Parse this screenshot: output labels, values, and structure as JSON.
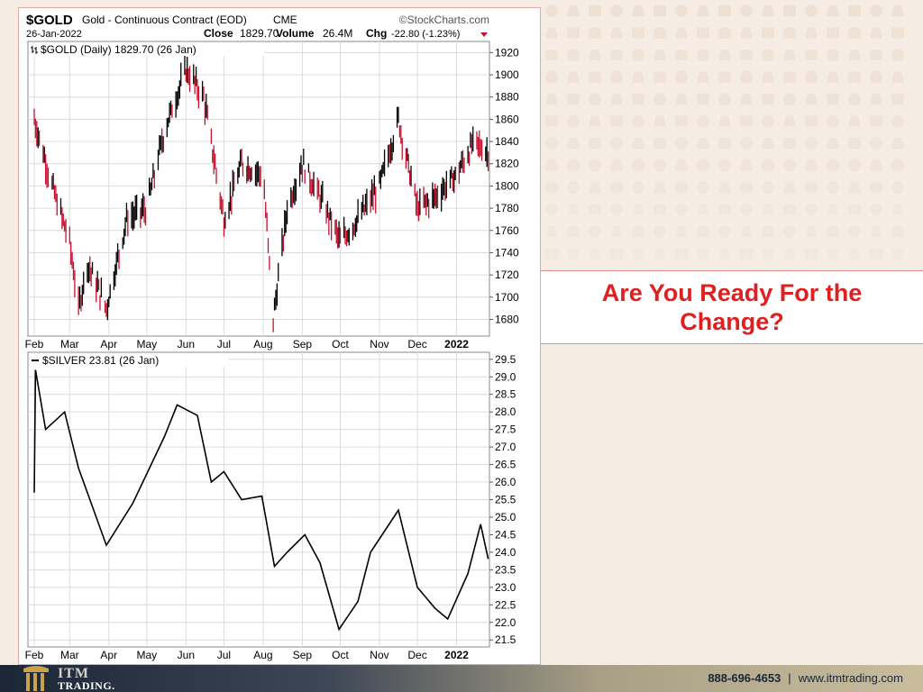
{
  "header": {
    "symbol": "$GOLD",
    "name": "Gold - Continuous Contract (EOD)",
    "exchange": "CME",
    "source": "©StockCharts.com",
    "date": "26-Jan-2022",
    "close_label": "Close",
    "close_value": "1829.70",
    "volume_label": "Volume",
    "volume_value": "26.4M",
    "chg_label": "Chg",
    "chg_value": "-22.80 (-1.23%)"
  },
  "callout": {
    "text": "Are You Ready For the Change?"
  },
  "footer": {
    "logo_line1": "ITM",
    "logo_line2": "TRADING.",
    "phone": "888-696-4653",
    "separator": "|",
    "website": "www.itmtrading.com"
  },
  "colors": {
    "down_bar": "#c8102e",
    "up_bar": "#000000",
    "accent_red": "#e02020"
  },
  "chart_data": [
    {
      "type": "line",
      "style": "ohlc-bars",
      "legend": "$GOLD (Daily) 1829.70 (26 Jan)",
      "y_ticks": [
        1680,
        1700,
        1720,
        1740,
        1760,
        1780,
        1800,
        1820,
        1840,
        1860,
        1880,
        1900,
        1920
      ],
      "ylim": [
        1665,
        1930
      ],
      "x_tick_labels": [
        "Feb",
        "Mar",
        "Apr",
        "May",
        "Jun",
        "Jul",
        "Aug",
        "Sep",
        "Oct",
        "Nov",
        "Dec",
        "2022"
      ],
      "x": [
        "2021-02-01",
        "2021-02-15",
        "2021-03-01",
        "2021-03-08",
        "2021-03-15",
        "2021-03-30",
        "2021-04-15",
        "2021-05-01",
        "2021-05-15",
        "2021-06-01",
        "2021-06-15",
        "2021-07-01",
        "2021-07-15",
        "2021-08-01",
        "2021-08-09",
        "2021-08-20",
        "2021-09-01",
        "2021-09-15",
        "2021-10-01",
        "2021-10-15",
        "2021-11-01",
        "2021-11-16",
        "2021-12-01",
        "2021-12-15",
        "2022-01-01",
        "2022-01-15",
        "2022-01-26"
      ],
      "values": [
        1860,
        1800,
        1750,
        1690,
        1730,
        1690,
        1770,
        1780,
        1850,
        1905,
        1880,
        1770,
        1820,
        1810,
        1680,
        1780,
        1820,
        1790,
        1750,
        1770,
        1800,
        1860,
        1780,
        1790,
        1810,
        1840,
        1829.7
      ]
    },
    {
      "type": "line",
      "legend": "$SILVER 23.81 (26 Jan)",
      "y_ticks": [
        21.5,
        22.0,
        22.5,
        23.0,
        23.5,
        24.0,
        24.5,
        25.0,
        25.5,
        26.0,
        26.5,
        27.0,
        27.5,
        28.0,
        28.5,
        29.0,
        29.5
      ],
      "ylim": [
        21.3,
        29.7
      ],
      "x_tick_labels": [
        "Feb",
        "Mar",
        "Apr",
        "May",
        "Jun",
        "Jul",
        "Aug",
        "Sep",
        "Oct",
        "Nov",
        "Dec",
        "2022"
      ],
      "x": [
        "2021-02-01",
        "2021-02-02",
        "2021-02-10",
        "2021-02-25",
        "2021-03-08",
        "2021-03-30",
        "2021-04-20",
        "2021-05-15",
        "2021-05-25",
        "2021-06-10",
        "2021-06-21",
        "2021-07-01",
        "2021-07-15",
        "2021-07-31",
        "2021-08-10",
        "2021-08-20",
        "2021-09-03",
        "2021-09-15",
        "2021-09-30",
        "2021-10-15",
        "2021-10-25",
        "2021-11-05",
        "2021-11-16",
        "2021-12-01",
        "2021-12-15",
        "2021-12-25",
        "2022-01-10",
        "2022-01-20",
        "2022-01-26"
      ],
      "values": [
        25.7,
        29.2,
        27.5,
        28.0,
        26.4,
        24.2,
        25.4,
        27.3,
        28.2,
        27.9,
        26.0,
        26.3,
        25.5,
        25.6,
        23.6,
        24.0,
        24.5,
        23.7,
        21.8,
        22.6,
        24.0,
        24.6,
        25.2,
        23.0,
        22.4,
        22.1,
        23.4,
        24.8,
        23.81
      ]
    }
  ]
}
